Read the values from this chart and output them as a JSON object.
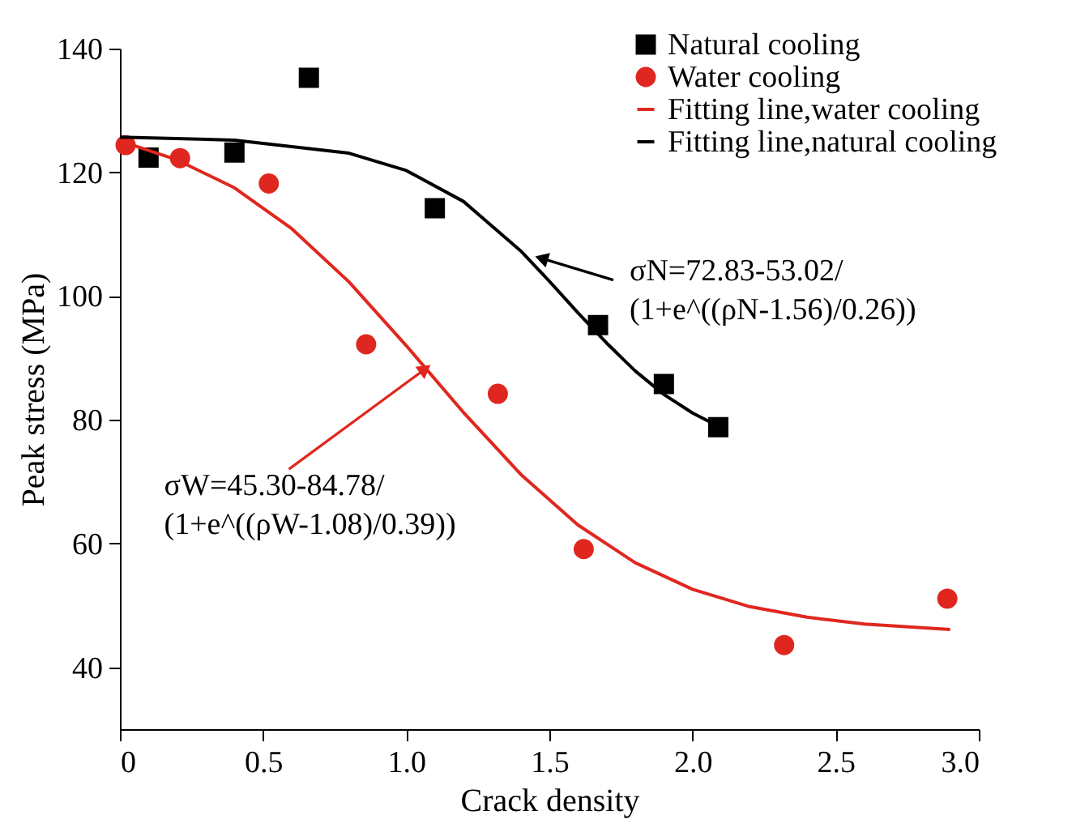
{
  "chart_data": {
    "type": "scatter",
    "xlabel": "Crack density",
    "ylabel": "Peak stress (MPa)",
    "xlim": [
      0,
      3.0
    ],
    "xticks": [
      0,
      {
        "value": 0.5,
        "label": "0.5"
      },
      {
        "value": 1,
        "label": "1.0"
      },
      {
        "value": 1.5,
        "label": "1.5"
      },
      {
        "value": 2,
        "label": "2.0"
      },
      {
        "value": 2.5,
        "label": "2.5"
      },
      {
        "value": 3,
        "label": "3.0"
      }
    ],
    "ylim": [
      30,
      140
    ],
    "yticks": [
      40,
      60,
      80,
      100,
      120,
      140
    ],
    "grid": false,
    "legend": "top right",
    "series": [
      {
        "name": "Natural cooling",
        "marker": "square",
        "color": "#000000",
        "x": [
          0.1,
          0.4,
          0.66,
          1.1,
          1.67,
          1.9,
          2.09
        ],
        "values": [
          122.4,
          123.2,
          135.3,
          114.2,
          95.3,
          85.8,
          78.8
        ]
      },
      {
        "name": "Water cooling",
        "marker": "circle",
        "color": "#e0271f",
        "x": [
          0.02,
          0.21,
          0.52,
          0.86,
          1.32,
          1.62,
          2.32,
          2.89
        ],
        "values": [
          124.4,
          122.3,
          118.2,
          92.2,
          84.2,
          59.1,
          43.6,
          51.1
        ]
      },
      {
        "name": "Fitting line,water cooling",
        "type": "line",
        "marker": "none",
        "line_style": "solid",
        "color": "#e0271f",
        "x": [
          0,
          0.2,
          0.4,
          0.6,
          0.8,
          1.0,
          1.2,
          1.4,
          1.6,
          1.8,
          2.0,
          2.2,
          2.4,
          2.6,
          2.9
        ],
        "values": [
          125.1,
          122.0,
          117.5,
          110.9,
          102.3,
          92.0,
          81.2,
          71.2,
          63.0,
          56.9,
          52.6,
          49.8,
          48.1,
          47.0,
          46.1
        ]
      },
      {
        "name": "Fitting line,natural cooling",
        "type": "line",
        "marker": "none",
        "line_style": "solid",
        "color": "#000000",
        "x": [
          0,
          0.4,
          0.8,
          1.0,
          1.2,
          1.4,
          1.5,
          1.6,
          1.7,
          1.8,
          1.9,
          2.0,
          2.08
        ],
        "values": [
          125.7,
          125.2,
          123.1,
          120.3,
          115.3,
          107.3,
          102.4,
          97.3,
          92.4,
          87.9,
          84.1,
          81.1,
          79.2
        ]
      }
    ],
    "annotations": [
      {
        "text": "σN=72.83-53.02/\n(1+e^((ρN-1.56)/0.26))",
        "x": 1.48,
        "y": 106
      },
      {
        "text": "σW=45.30-84.78/\n(1+e^((ρW-1.08)/0.39))",
        "x": 1.06,
        "y": 88
      }
    ]
  }
}
